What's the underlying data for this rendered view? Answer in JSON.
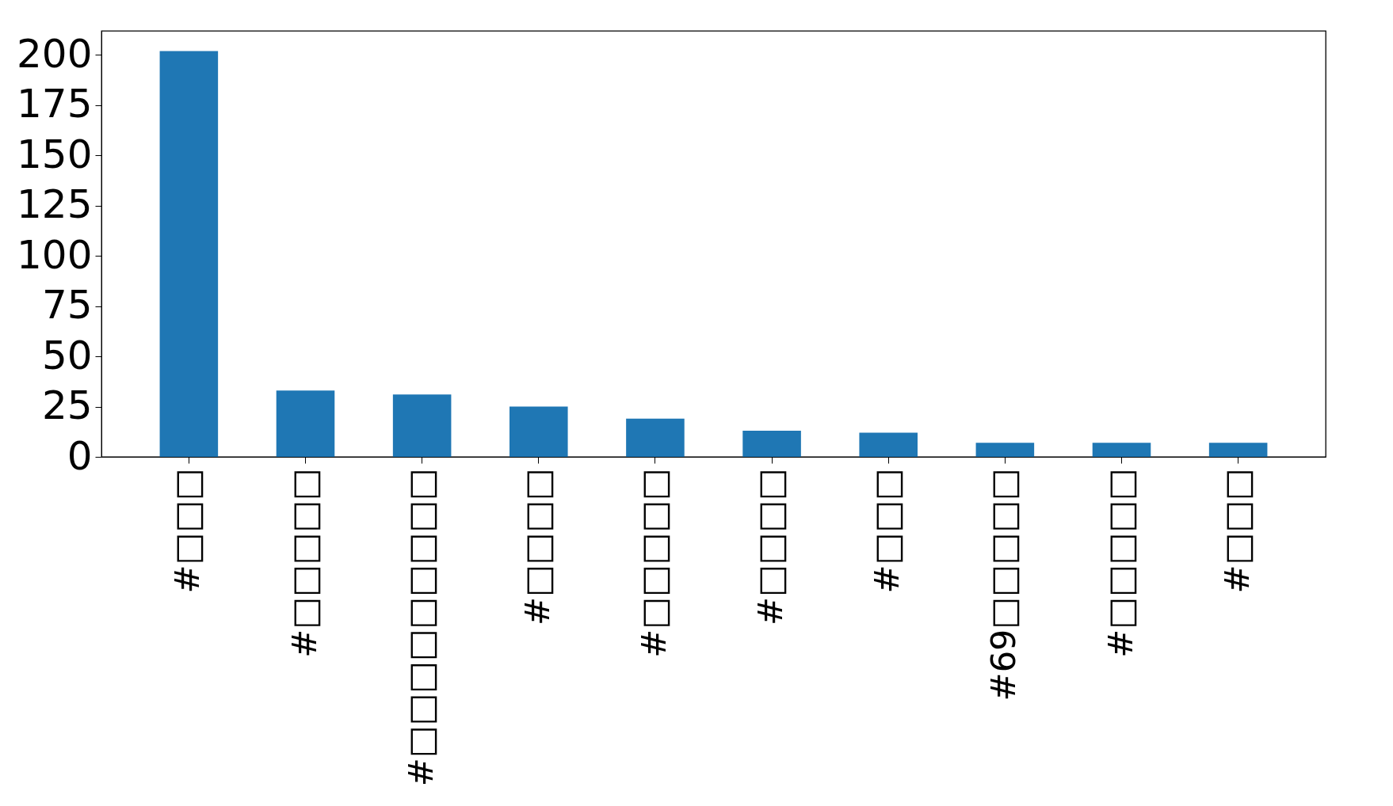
{
  "chart_data": {
    "type": "bar",
    "categories": [
      "#□□□",
      "#□□□□□",
      "#□□□□□□□□□",
      "#□□□□",
      "#□□□□□",
      "#□□□□",
      "#□□□",
      "#69□□□□□",
      "#□□□□□",
      "#□□□"
    ],
    "values": [
      202,
      33,
      31,
      25,
      19,
      13,
      12,
      7,
      7,
      7
    ],
    "color": "#1f77b4",
    "ylim": [
      0,
      212
    ],
    "yticks": [
      0,
      25,
      50,
      75,
      100,
      125,
      150,
      175,
      200
    ],
    "grid": false
  }
}
